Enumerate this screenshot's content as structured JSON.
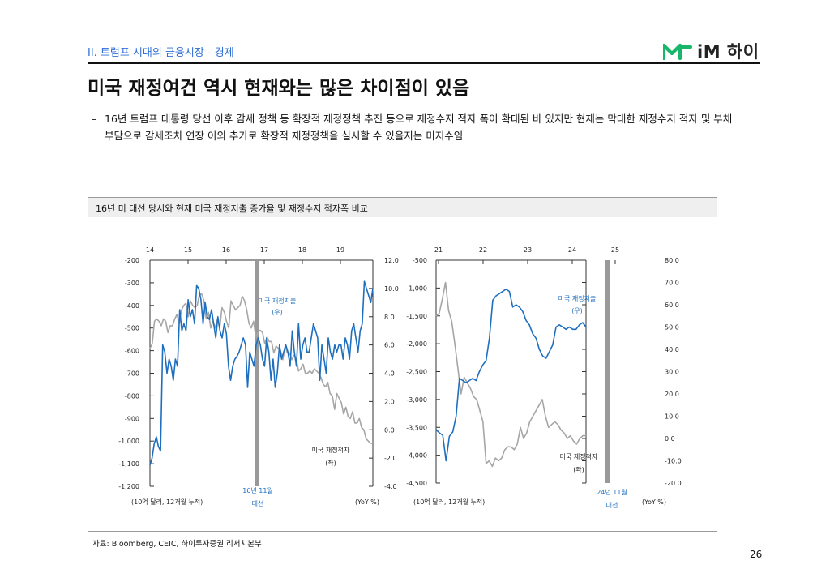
{
  "header": {
    "section": "II. 트럼프 시대의 금융시장 - 경제",
    "logo_text": "iM 하이"
  },
  "title": "미국 재정여건 역시 현재와는 많은 차이점이 있음",
  "bullet": {
    "dash": "–",
    "text": "16년 트럼프 대통령 당선 이후 감세 정책 등 확장적 재정정책 추진 등으로 재정수지 적자 폭이 확대된 바 있지만 현재는 막대한 재정수지 적자 및 부채 부담으로 감세조치 연장 이외 추가로 확장적 재정정책을 실시할 수 있을지는 미지수임"
  },
  "chart_title": "16년 미 대선 당시와 현재 미국 재정지출 증가율 및 재정수지 적자폭 비교",
  "source": "자료: Bloomberg, CEIC, 하이투자증권 리서치본부",
  "page_number": "26",
  "colors": {
    "accent": "#2f6fd6",
    "spending": "#1f6fbf",
    "deficit": "#a6a6a6",
    "election_band": "#999999",
    "logo_green": "#19b56a"
  },
  "chart_data": [
    {
      "type": "line",
      "x_tick_labels": [
        "14",
        "15",
        "16",
        "17",
        "18",
        "19"
      ],
      "left_axis": {
        "ticks": [
          "-200",
          "-300",
          "-400",
          "-500",
          "-600",
          "-700",
          "-800",
          "-900",
          "-1,000",
          "-1,100",
          "-1,200"
        ],
        "unit": "(10억 달러, 12개월 누적)",
        "ylim": [
          -1200,
          -200
        ]
      },
      "right_axis": {
        "ticks": [
          "12.0",
          "10.0",
          "8.0",
          "6.0",
          "4.0",
          "2.0",
          "0.0",
          "-2.0",
          "-4.0"
        ],
        "unit": "(YoY %)",
        "ylim": [
          -4,
          12
        ]
      },
      "annotations": {
        "spending_label": [
          "미국 재정지출",
          "(우)"
        ],
        "deficit_label": [
          "미국 재정적자",
          "(좌)"
        ],
        "event_label": [
          "16년 11월",
          "대선"
        ]
      },
      "series": [
        {
          "name": "미국 재정적자",
          "axis": "left",
          "values": [
            -590,
            -570,
            -470,
            -460,
            -470,
            -490,
            -460,
            -470,
            -520,
            -490,
            -490,
            -460,
            -440,
            -480,
            -420,
            -400,
            -390,
            -450,
            -380,
            -400,
            -410,
            -400,
            -350,
            -350,
            -380,
            -460,
            -430,
            -500,
            -470,
            -500,
            -460,
            -500,
            -410,
            -430,
            -470,
            -500,
            -380,
            -400,
            -420,
            -410,
            -400,
            -360,
            -380,
            -420,
            -480,
            -500,
            -470,
            -540,
            -520,
            -510,
            -520,
            -570,
            -540,
            -560,
            -560,
            -610,
            -580,
            -590,
            -600,
            -640,
            -580,
            -610,
            -610,
            -640,
            -620,
            -640,
            -690,
            -680,
            -660,
            -700,
            -700,
            -690,
            -700,
            -680,
            -690,
            -700,
            -720,
            -750,
            -760,
            -740,
            -790,
            -800,
            -860,
            -790,
            -810,
            -830,
            -880,
            -850,
            -890,
            -900,
            -870,
            -920,
            -920,
            -900,
            -940,
            -950,
            -990,
            -1000,
            -1010,
            -1010
          ]
        },
        {
          "name": "미국 재정지출",
          "axis": "right",
          "values": [
            -2.5,
            -2.0,
            -1.0,
            -0.5,
            -1.2,
            -1.5,
            6.0,
            5.5,
            4.0,
            5.0,
            4.5,
            3.5,
            5.0,
            4.5,
            8.5,
            7.0,
            7.5,
            7.0,
            9.2,
            8.0,
            8.5,
            7.5,
            10.2,
            10.0,
            9.2,
            7.5,
            9.0,
            8.0,
            7.8,
            8.5,
            7.5,
            6.5,
            8.0,
            7.0,
            6.5,
            7.5,
            6.8,
            4.5,
            3.5,
            4.5,
            5.0,
            5.2,
            5.5,
            6.0,
            6.5,
            6.0,
            3.0,
            5.5,
            5.0,
            4.5,
            6.0,
            6.5,
            6.0,
            5.0,
            4.5,
            6.5,
            5.5,
            3.5,
            5.0,
            3.0,
            4.0,
            6.0,
            5.0,
            5.5,
            6.0,
            5.5,
            4.5,
            7.0,
            5.5,
            4.5,
            7.5,
            5.0,
            6.0,
            6.5,
            5.5,
            5.5,
            6.5,
            7.5,
            7.0,
            6.5,
            3.5,
            6.0,
            5.0,
            4.0,
            6.5,
            5.5,
            5.0,
            6.0,
            5.5,
            6.0,
            6.0,
            5.0,
            6.5,
            6.0,
            5.0,
            7.0,
            7.5,
            6.5,
            5.5,
            7.0,
            7.5,
            10.5,
            10.0,
            9.5,
            9.0,
            10.0
          ]
        }
      ]
    },
    {
      "type": "line",
      "x_tick_labels": [
        "21",
        "22",
        "23",
        "24",
        "25"
      ],
      "left_axis": {
        "ticks": [
          "-500",
          "-1,000",
          "-1,500",
          "-2,000",
          "-2,500",
          "-3,000",
          "-3,500",
          "-4,000",
          "-4,500"
        ],
        "unit": "(10억 달러, 12개월 누적)",
        "ylim": [
          -4500,
          -500
        ]
      },
      "right_axis": {
        "ticks": [
          "80.0",
          "70.0",
          "60.0",
          "50.0",
          "40.0",
          "30.0",
          "20.0",
          "10.0",
          "0.0",
          "-10.0",
          "-20.0"
        ],
        "unit": "(YoY %)",
        "ylim": [
          -20,
          80
        ]
      },
      "annotations": {
        "spending_label": [
          "미국 재정지출",
          "(우)"
        ],
        "deficit_label": [
          "미국 재정적자",
          "(좌)"
        ],
        "event_label": [
          "24년 11월",
          "대선"
        ]
      },
      "series": [
        {
          "name": "미국 재정적자",
          "axis": "left",
          "values": [
            -1500,
            -1450,
            -1200,
            -900,
            -1400,
            -1600,
            -2000,
            -2450,
            -2900,
            -2600,
            -2700,
            -2800,
            -2950,
            -3000,
            -3200,
            -3400,
            -4150,
            -4100,
            -4200,
            -4050,
            -4100,
            -4050,
            -3900,
            -3850,
            -3850,
            -3900,
            -3800,
            -3500,
            -3700,
            -3600,
            -3400,
            -3300,
            -3200,
            -3100,
            -3000,
            -3300,
            -3500,
            -3450,
            -3400,
            -3450,
            -3550,
            -3600,
            -3700,
            -3650,
            -3750,
            -3800,
            -3700,
            -3650,
            -3650
          ]
        },
        {
          "name": "미국 재정지출",
          "axis": "right",
          "values": [
            4.0,
            2.5,
            1.5,
            -10.0,
            1.0,
            3.0,
            10.0,
            27.0,
            26.0,
            25.0,
            26.0,
            27.0,
            26.0,
            30.0,
            33.0,
            35.0,
            45.0,
            62.0,
            64.0,
            65.0,
            66.0,
            67.0,
            66.0,
            59.0,
            60.0,
            59.0,
            57.0,
            53.0,
            51.0,
            47.0,
            45.0,
            40.0,
            37.0,
            36.0,
            39.0,
            42.0,
            50.0,
            51.0,
            50.0,
            49.0,
            50.0,
            49.0,
            49.0,
            51.0,
            52.0,
            50.0
          ]
        }
      ]
    }
  ]
}
